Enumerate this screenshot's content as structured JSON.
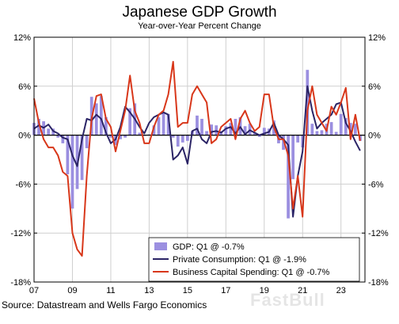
{
  "title": "Japanese GDP Growth",
  "subtitle": "Year-over-Year Percent Change",
  "source": "Source: Datastream and Wells Fargo Economics",
  "watermark": "FastBull",
  "chart_data": {
    "type": "bar+line",
    "ylim": [
      -18,
      12
    ],
    "y_ticks": [
      "12%",
      "6%",
      "0%",
      "-6%",
      "-12%",
      "-18%"
    ],
    "y_tick_values": [
      12,
      6,
      0,
      -6,
      -12,
      -18
    ],
    "x_range": [
      2007.0,
      2024.25
    ],
    "x_ticks": [
      "07",
      "09",
      "11",
      "13",
      "15",
      "17",
      "19",
      "21",
      "23"
    ],
    "x_tick_values": [
      2007,
      2009,
      2011,
      2013,
      2015,
      2017,
      2019,
      2021,
      2023
    ],
    "grid": true,
    "legend_position": "bottom-right",
    "colors": {
      "gdp": "#9b8fe0",
      "consumption": "#2b2466",
      "capex": "#d8371a"
    },
    "series": [
      {
        "name": "GDP: Q1 @ -0.7%",
        "kind": "bar",
        "color": "#9b8fe0",
        "x": [
          2007.0,
          2007.25,
          2007.5,
          2007.75,
          2008.0,
          2008.25,
          2008.5,
          2008.75,
          2009.0,
          2009.25,
          2009.5,
          2009.75,
          2010.0,
          2010.25,
          2010.5,
          2010.75,
          2011.0,
          2011.25,
          2011.5,
          2011.75,
          2012.0,
          2012.25,
          2012.5,
          2012.75,
          2013.0,
          2013.25,
          2013.5,
          2013.75,
          2014.0,
          2014.25,
          2014.5,
          2014.75,
          2015.0,
          2015.25,
          2015.5,
          2015.75,
          2016.0,
          2016.25,
          2016.5,
          2016.75,
          2017.0,
          2017.25,
          2017.5,
          2017.75,
          2018.0,
          2018.25,
          2018.5,
          2018.75,
          2019.0,
          2019.25,
          2019.5,
          2019.75,
          2020.0,
          2020.25,
          2020.5,
          2020.75,
          2021.0,
          2021.25,
          2021.5,
          2021.75,
          2022.0,
          2022.25,
          2022.5,
          2022.75,
          2023.0,
          2023.25,
          2023.5,
          2023.75,
          2024.0
        ],
        "values": [
          1.5,
          2.0,
          1.7,
          0.8,
          0.8,
          -0.3,
          -1.0,
          -4.8,
          -9.0,
          -6.6,
          -5.5,
          -1.6,
          4.7,
          3.9,
          4.8,
          2.2,
          -0.3,
          -1.2,
          -0.5,
          -0.3,
          3.3,
          3.9,
          0.3,
          -0.1,
          0.1,
          1.2,
          2.2,
          2.8,
          2.6,
          -0.3,
          -1.4,
          -0.9,
          -0.7,
          0.5,
          2.4,
          2.0,
          0.5,
          1.3,
          1.2,
          0.5,
          1.1,
          1.5,
          2.0,
          2.2,
          1.1,
          1.4,
          0.3,
          -0.2,
          0.9,
          0.8,
          1.8,
          -1.0,
          -1.8,
          -10.2,
          -5.4,
          -0.9,
          -1.5,
          8.0,
          1.4,
          0.5,
          0.6,
          1.4,
          1.6,
          0.4,
          2.6,
          2.1,
          1.5,
          1.4,
          -0.7
        ]
      },
      {
        "name": "Private Consumption: Q1 @ -1.9%",
        "kind": "line",
        "color": "#2b2466",
        "x": [
          2007.0,
          2007.25,
          2007.5,
          2007.75,
          2008.0,
          2008.25,
          2008.5,
          2008.75,
          2009.0,
          2009.25,
          2009.5,
          2009.75,
          2010.0,
          2010.25,
          2010.5,
          2010.75,
          2011.0,
          2011.25,
          2011.5,
          2011.75,
          2012.0,
          2012.25,
          2012.5,
          2012.75,
          2013.0,
          2013.25,
          2013.5,
          2013.75,
          2014.0,
          2014.25,
          2014.5,
          2014.75,
          2015.0,
          2015.25,
          2015.5,
          2015.75,
          2016.0,
          2016.25,
          2016.5,
          2016.75,
          2017.0,
          2017.25,
          2017.5,
          2017.75,
          2018.0,
          2018.25,
          2018.5,
          2018.75,
          2019.0,
          2019.25,
          2019.5,
          2019.75,
          2020.0,
          2020.25,
          2020.5,
          2020.75,
          2021.0,
          2021.25,
          2021.5,
          2021.75,
          2022.0,
          2022.25,
          2022.5,
          2022.75,
          2023.0,
          2023.25,
          2023.5,
          2023.75,
          2024.0
        ],
        "values": [
          0.8,
          1.2,
          0.9,
          1.3,
          0.5,
          0.2,
          -0.3,
          -0.5,
          -2.5,
          -3.8,
          -0.5,
          2.0,
          1.8,
          2.5,
          2.0,
          0.3,
          -1.0,
          -0.5,
          1.0,
          3.5,
          2.8,
          2.0,
          1.0,
          0.2,
          1.5,
          2.2,
          2.5,
          2.8,
          2.5,
          -3.0,
          -2.5,
          -1.5,
          -3.5,
          0.5,
          0.8,
          -0.5,
          -1.0,
          0.4,
          0.5,
          0.3,
          0.8,
          1.0,
          0.2,
          1.0,
          0.1,
          0.6,
          0.3,
          0.0,
          0.2,
          0.4,
          1.5,
          0.0,
          -0.5,
          -1.2,
          -10.0,
          -5.0,
          -2.0,
          6.0,
          3.0,
          0.8,
          1.5,
          2.0,
          2.5,
          3.8,
          4.0,
          1.5,
          0.5,
          -0.8,
          -1.9
        ]
      },
      {
        "name": "Business Capital Spending: Q1 @ -0.7%",
        "kind": "line",
        "color": "#d8371a",
        "x": [
          2007.0,
          2007.25,
          2007.5,
          2007.75,
          2008.0,
          2008.25,
          2008.5,
          2008.75,
          2009.0,
          2009.25,
          2009.5,
          2009.75,
          2010.0,
          2010.25,
          2010.5,
          2010.75,
          2011.0,
          2011.25,
          2011.5,
          2011.75,
          2012.0,
          2012.25,
          2012.5,
          2012.75,
          2013.0,
          2013.25,
          2013.5,
          2013.75,
          2014.0,
          2014.25,
          2014.5,
          2014.75,
          2015.0,
          2015.25,
          2015.5,
          2015.75,
          2016.0,
          2016.25,
          2016.5,
          2016.75,
          2017.0,
          2017.25,
          2017.5,
          2017.75,
          2018.0,
          2018.25,
          2018.5,
          2018.75,
          2019.0,
          2019.25,
          2019.5,
          2019.75,
          2020.0,
          2020.25,
          2020.5,
          2020.75,
          2021.0,
          2021.25,
          2021.5,
          2021.75,
          2022.0,
          2022.25,
          2022.5,
          2022.75,
          2023.0,
          2023.25,
          2023.5,
          2023.75,
          2024.0
        ],
        "values": [
          4.5,
          1.5,
          -0.5,
          -1.5,
          -1.5,
          -2.5,
          -4.5,
          -5.0,
          -12.0,
          -14.0,
          -14.8,
          -5.0,
          2.0,
          4.8,
          5.0,
          2.0,
          1.0,
          -2.0,
          0.5,
          3.0,
          7.3,
          3.0,
          1.5,
          -1.0,
          -1.0,
          1.0,
          2.5,
          3.0,
          5.0,
          9.0,
          1.0,
          1.5,
          1.5,
          5.0,
          6.0,
          5.0,
          4.0,
          -1.0,
          -0.5,
          1.0,
          1.5,
          2.0,
          -0.5,
          2.0,
          3.0,
          1.5,
          0.5,
          1.0,
          5.0,
          5.0,
          1.0,
          -0.5,
          -0.5,
          -2.5,
          -9.0,
          -5.0,
          -10.0,
          3.0,
          6.0,
          2.5,
          1.5,
          0.5,
          3.5,
          2.5,
          4.0,
          5.8,
          -0.5,
          2.5,
          -0.7
        ]
      }
    ]
  }
}
